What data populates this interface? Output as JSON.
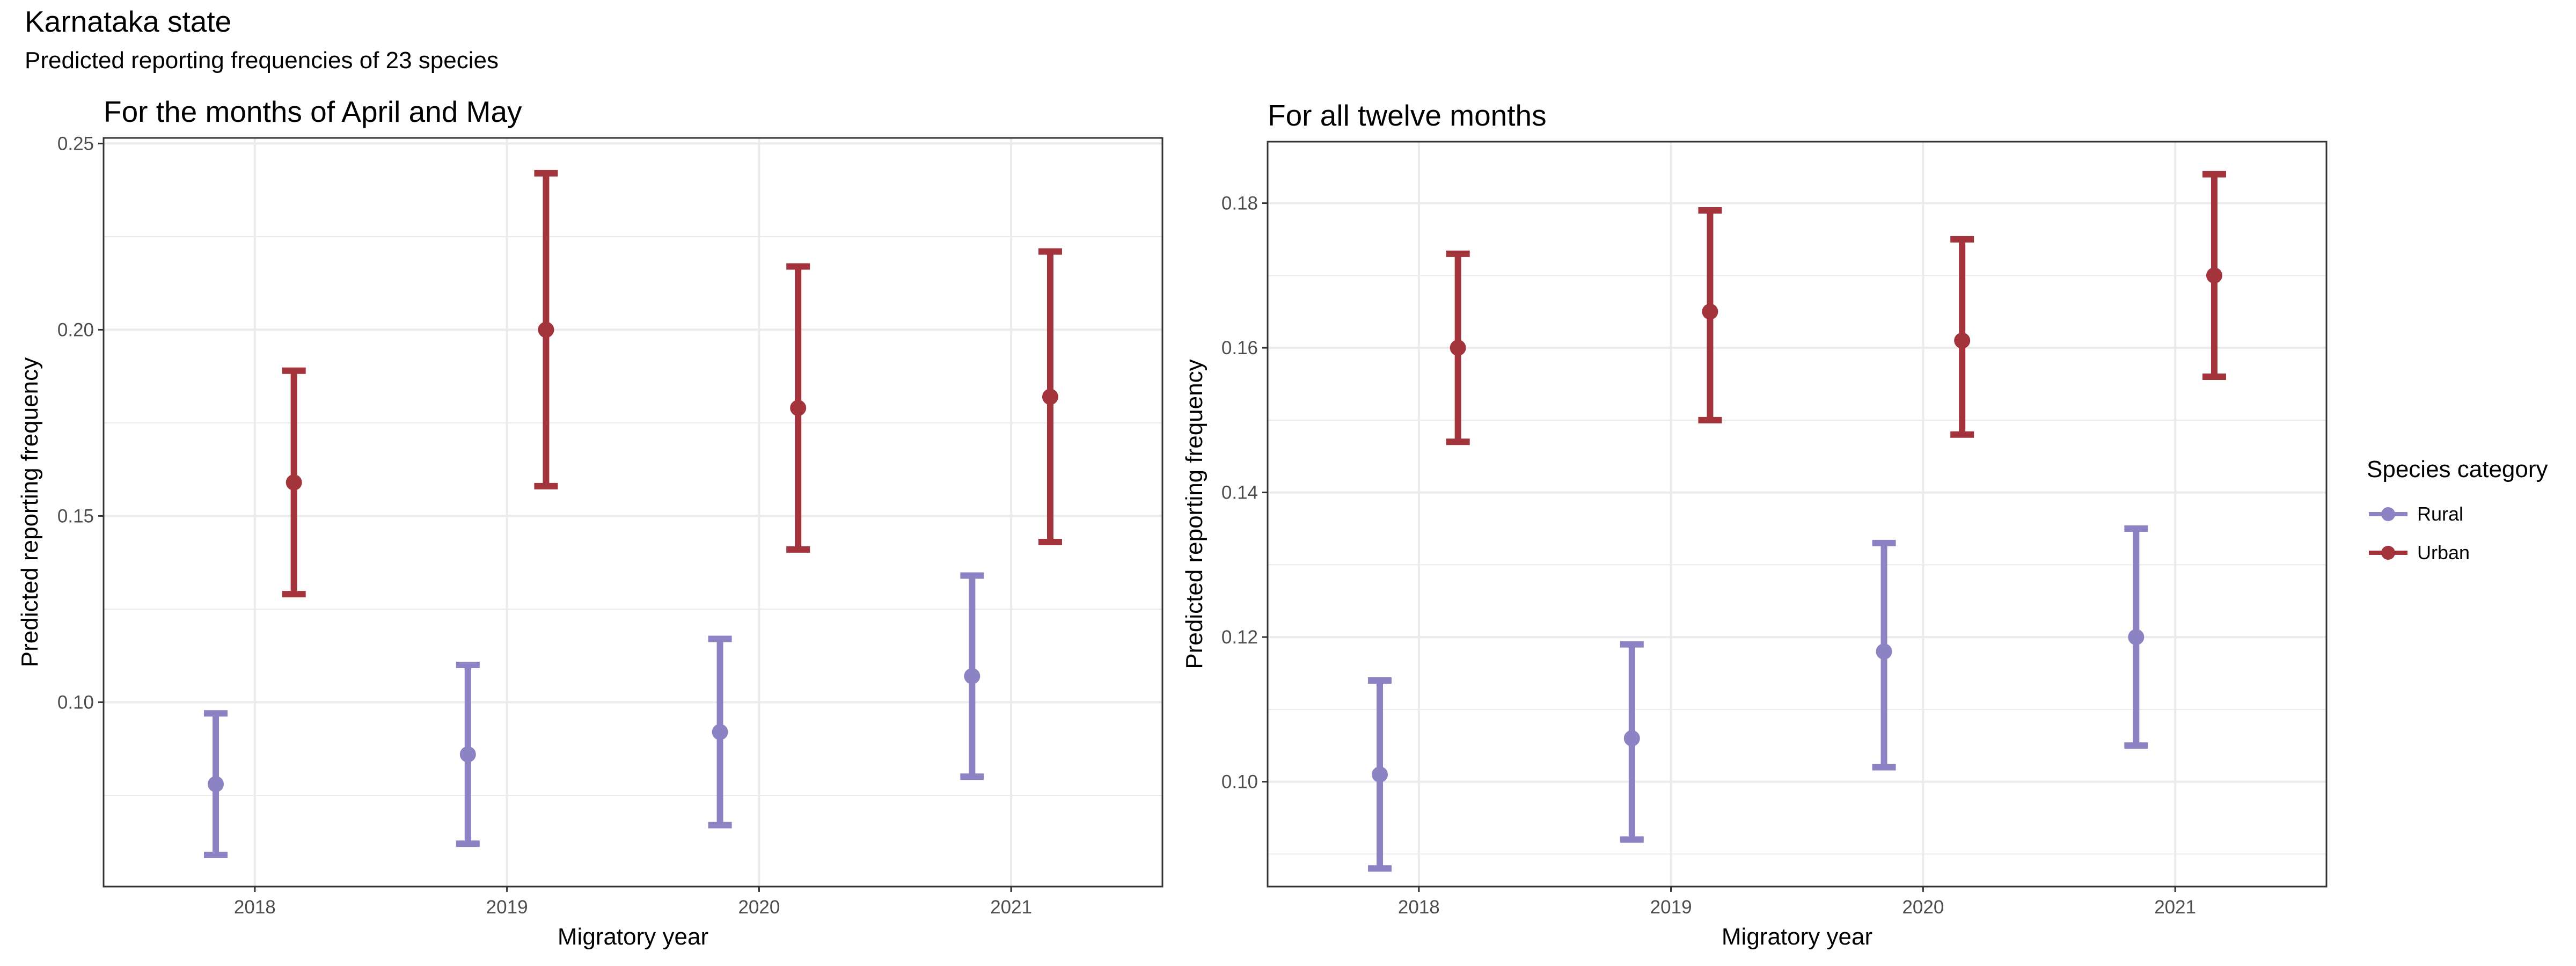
{
  "title": "Karnataka state",
  "subtitle": "Predicted reporting frequencies of 23 species",
  "colors": {
    "Rural": "#8c83c4",
    "Urban": "#a4343c",
    "grid": "#ebebeb",
    "panel_border": "#333333"
  },
  "legend": {
    "title": "Species category",
    "items": [
      {
        "label": "Rural",
        "color": "#8c83c4"
      },
      {
        "label": "Urban",
        "color": "#a4343c"
      }
    ]
  },
  "chart_data": [
    {
      "type": "scatter",
      "subtitle": "For the months of April and May",
      "xlabel": "Migratory year",
      "ylabel": "Predicted reporting frequency",
      "categories": [
        "2018",
        "2019",
        "2020",
        "2021"
      ],
      "ylim": [
        0.0505,
        0.2515
      ],
      "yticks": [
        0.1,
        0.15,
        0.2,
        0.25
      ],
      "ytick_labels": [
        "0.10",
        "0.15",
        "0.20",
        "0.25"
      ],
      "grid": true,
      "series": [
        {
          "name": "Rural",
          "values": [
            0.078,
            0.086,
            0.092,
            0.107
          ],
          "lower": [
            0.059,
            0.062,
            0.067,
            0.08
          ],
          "upper": [
            0.097,
            0.11,
            0.117,
            0.134
          ]
        },
        {
          "name": "Urban",
          "values": [
            0.159,
            0.2,
            0.179,
            0.182
          ],
          "lower": [
            0.129,
            0.158,
            0.141,
            0.143
          ],
          "upper": [
            0.189,
            0.242,
            0.217,
            0.221
          ]
        }
      ]
    },
    {
      "type": "scatter",
      "subtitle": "For all twelve months",
      "xlabel": "Migratory year",
      "ylabel": "Predicted reporting frequency",
      "categories": [
        "2018",
        "2019",
        "2020",
        "2021"
      ],
      "ylim": [
        0.0855,
        0.1885
      ],
      "yticks": [
        0.1,
        0.12,
        0.14,
        0.16,
        0.18
      ],
      "ytick_labels": [
        "0.10",
        "0.12",
        "0.14",
        "0.16",
        "0.18"
      ],
      "grid": true,
      "series": [
        {
          "name": "Rural",
          "values": [
            0.101,
            0.106,
            0.118,
            0.12
          ],
          "lower": [
            0.088,
            0.092,
            0.102,
            0.105
          ],
          "upper": [
            0.114,
            0.119,
            0.133,
            0.135
          ]
        },
        {
          "name": "Urban",
          "values": [
            0.16,
            0.165,
            0.161,
            0.17
          ],
          "lower": [
            0.147,
            0.15,
            0.148,
            0.156
          ],
          "upper": [
            0.173,
            0.179,
            0.175,
            0.184
          ]
        }
      ]
    }
  ]
}
